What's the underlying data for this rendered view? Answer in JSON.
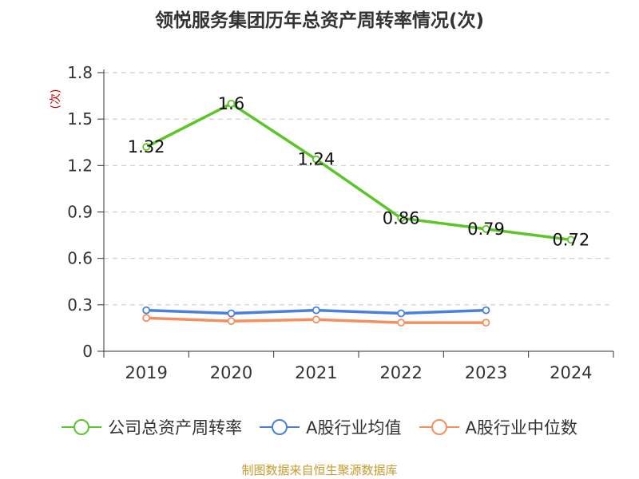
{
  "chart_data": {
    "type": "line",
    "title": "领悦服务集团历年总资产周转率情况(次)",
    "ylabel": "(次)",
    "xlabel": "",
    "categories": [
      "2019",
      "2020",
      "2021",
      "2022",
      "2023",
      "2024"
    ],
    "ylim": [
      0,
      1.8
    ],
    "yticks": [
      "0",
      "0.3",
      "0.6",
      "0.9",
      "1.2",
      "1.5",
      "1.8"
    ],
    "grid": true,
    "legend_position": "bottom",
    "series": [
      {
        "name": "公司总资产周转率",
        "color": "#5cc52a",
        "values": [
          1.32,
          1.6,
          1.24,
          0.86,
          0.79,
          0.72
        ],
        "labels": [
          "1.32",
          "1.6",
          "1.24",
          "0.86",
          "0.79",
          "0.72"
        ]
      },
      {
        "name": "A股行业均值",
        "color": "#4a7fe0",
        "values": [
          0.265,
          0.245,
          0.265,
          0.245,
          0.265,
          null
        ]
      },
      {
        "name": "A股行业中位数",
        "color": "#f58f5f",
        "values": [
          0.215,
          0.195,
          0.205,
          0.185,
          0.185,
          null
        ]
      }
    ]
  },
  "source": "制图数据来自恒生聚源数据库"
}
